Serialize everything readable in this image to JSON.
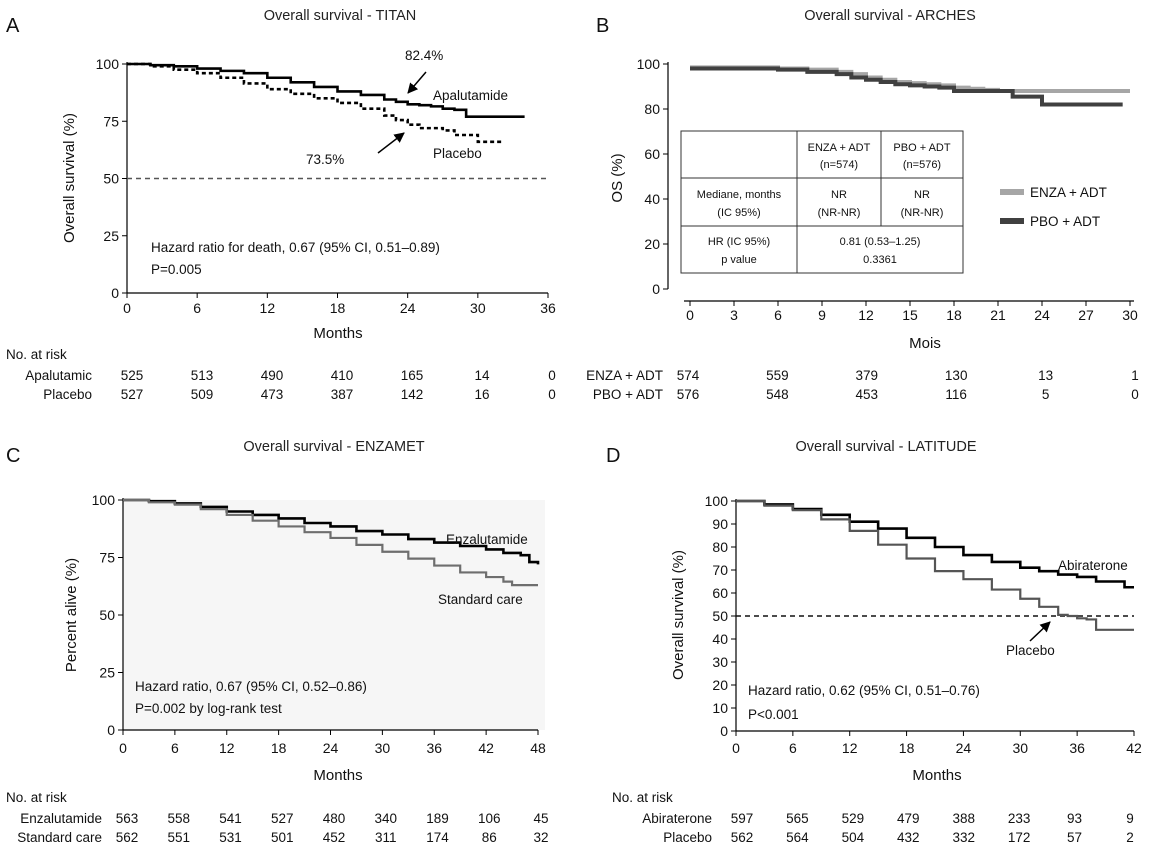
{
  "chart_data": [
    {
      "panel": "A",
      "type": "line",
      "title": "Overall survival - TITAN",
      "xlabel": "Months",
      "ylabel": "Overall survival (%)",
      "xlim": [
        0,
        36
      ],
      "ylim": [
        0,
        100
      ],
      "xticks": [
        0,
        6,
        12,
        18,
        24,
        30,
        36
      ],
      "yticks": [
        0,
        25,
        50,
        75,
        100
      ],
      "reference_line": 50,
      "series": [
        {
          "name": "Apalutamide",
          "style": "solid",
          "x": [
            0,
            2,
            4,
            6,
            8,
            10,
            12,
            14,
            16,
            18,
            20,
            22,
            23,
            24,
            25,
            26,
            27,
            28,
            29,
            30,
            32,
            34
          ],
          "y": [
            100,
            99.5,
            99,
            98,
            97,
            96,
            94,
            92,
            90,
            88,
            86.5,
            84.5,
            83.5,
            82.4,
            82,
            81.5,
            80.5,
            80,
            77,
            77,
            77,
            77
          ]
        },
        {
          "name": "Placebo",
          "style": "dashed",
          "x": [
            0,
            2,
            4,
            6,
            8,
            10,
            12,
            14,
            16,
            18,
            20,
            22,
            23,
            24,
            25,
            26,
            27,
            28,
            30,
            31,
            32
          ],
          "y": [
            100,
            99,
            97.5,
            96,
            94,
            91.5,
            89,
            87,
            85,
            83,
            80.5,
            77.5,
            75.5,
            73.5,
            72,
            72,
            71,
            69,
            66,
            66,
            66
          ]
        }
      ],
      "annotations": [
        {
          "text": "82.4%"
        },
        {
          "text": "73.5%"
        },
        {
          "text": "Apalutamide"
        },
        {
          "text": "Placebo"
        },
        {
          "text": "Hazard ratio for death, 0.67 (95% CI, 0.51–0.89)"
        },
        {
          "text": "P=0.005"
        }
      ],
      "risk_table": {
        "title": "No. at risk",
        "rows": [
          {
            "label": "Apalutamic",
            "values": [
              525,
              513,
              490,
              410,
              165,
              14,
              0
            ]
          },
          {
            "label": "Placebo",
            "values": [
              527,
              509,
              473,
              387,
              142,
              16,
              0
            ]
          }
        ]
      }
    },
    {
      "panel": "B",
      "type": "line",
      "title": "Overall survival - ARCHES",
      "xlabel": "Mois",
      "ylabel": "OS (%)",
      "xlim": [
        0,
        30
      ],
      "ylim": [
        0,
        100
      ],
      "xticks": [
        0,
        3,
        6,
        9,
        12,
        15,
        18,
        21,
        24,
        27,
        30
      ],
      "yticks": [
        0,
        20,
        40,
        60,
        80,
        100
      ],
      "series": [
        {
          "name": "ENZA + ADT",
          "color": "#a6a6a6",
          "x": [
            0,
            3,
            6,
            8,
            10,
            11,
            12,
            13,
            14,
            15,
            16,
            17,
            18,
            19,
            20,
            21,
            22,
            24,
            26,
            28,
            30
          ],
          "y": [
            98.5,
            98.5,
            98,
            97.5,
            96.5,
            95.5,
            94,
            93,
            92,
            91.5,
            91,
            90.5,
            89.5,
            89,
            88.5,
            88,
            88,
            88,
            88,
            88,
            88
          ]
        },
        {
          "name": "PBO + ADT",
          "color": "#404040",
          "x": [
            0,
            3,
            6,
            8,
            10,
            11,
            12,
            13,
            14,
            15,
            16,
            17,
            18,
            20,
            21,
            22,
            24,
            26,
            28,
            29.5
          ],
          "y": [
            98,
            98,
            97.5,
            96.5,
            95.5,
            94,
            93,
            92,
            91,
            90.5,
            90,
            89.5,
            88,
            88,
            88,
            85.5,
            82,
            82,
            82,
            82
          ]
        }
      ],
      "legend": "right",
      "table": {
        "headers": [
          "",
          "ENZA + ADT",
          "PBO + ADT"
        ],
        "header_sub": [
          "",
          "(n=574)",
          "(n=576)"
        ],
        "rows": [
          {
            "label": "Mediane, months",
            "sub": "(IC 95%)",
            "c1": "NR",
            "c1_sub": "(NR-NR)",
            "c2": "NR",
            "c2_sub": "(NR-NR)"
          },
          {
            "label": "HR (IC 95%)",
            "sub": "p value",
            "merged": "0.81 (0.53–1.25)",
            "merged_sub": "0.3361"
          }
        ]
      },
      "risk_table": {
        "rows": [
          {
            "label": "ENZA + ADT",
            "values": [
              574,
              559,
              379,
              130,
              13,
              1
            ]
          },
          {
            "label": "PBO + ADT",
            "values": [
              576,
              548,
              453,
              116,
              5,
              0
            ]
          }
        ]
      }
    },
    {
      "panel": "C",
      "type": "line",
      "title": "Overall survival - ENZAMET",
      "xlabel": "Months",
      "ylabel": "Percent alive (%)",
      "xlim": [
        0,
        48
      ],
      "ylim": [
        0,
        100
      ],
      "xticks": [
        0,
        6,
        12,
        18,
        24,
        30,
        36,
        42,
        48
      ],
      "yticks": [
        0,
        25,
        50,
        75,
        100
      ],
      "series": [
        {
          "name": "Enzalutamide",
          "color": "#000000",
          "x": [
            0,
            3,
            6,
            9,
            12,
            15,
            18,
            21,
            24,
            27,
            30,
            33,
            36,
            39,
            42,
            44,
            46,
            47,
            48
          ],
          "y": [
            100,
            99.5,
            98.5,
            97,
            95,
            93.5,
            92,
            90,
            88.5,
            86.5,
            85,
            83,
            81.5,
            80,
            78.5,
            77,
            76,
            73,
            72
          ]
        },
        {
          "name": "Standard care",
          "color": "#6e6e6e",
          "x": [
            0,
            3,
            6,
            9,
            12,
            15,
            18,
            21,
            24,
            27,
            30,
            33,
            36,
            39,
            42,
            44,
            45,
            48
          ],
          "y": [
            100,
            99,
            98,
            96,
            93.5,
            91,
            88.5,
            86,
            83.5,
            80.5,
            77.5,
            74.5,
            71.5,
            68.5,
            66.5,
            64.5,
            63,
            63
          ]
        }
      ],
      "annotations": [
        {
          "text": "Enzalutamide"
        },
        {
          "text": "Standard care"
        },
        {
          "text": "Hazard ratio, 0.67 (95% CI, 0.52–0.86)"
        },
        {
          "text": "P=0.002 by log-rank test"
        }
      ],
      "risk_table": {
        "title": "No. at risk",
        "rows": [
          {
            "label": "Enzalutamide",
            "values": [
              563,
              558,
              541,
              527,
              480,
              340,
              189,
              106,
              45
            ]
          },
          {
            "label": "Standard care",
            "values": [
              562,
              551,
              531,
              501,
              452,
              311,
              174,
              86,
              32
            ]
          }
        ]
      }
    },
    {
      "panel": "D",
      "type": "line",
      "title": "Overall survival - LATITUDE",
      "xlabel": "Months",
      "ylabel": "Overall survival (%)",
      "xlim": [
        0,
        42
      ],
      "ylim": [
        0,
        100
      ],
      "xticks": [
        0,
        6,
        12,
        18,
        24,
        30,
        36,
        42
      ],
      "yticks": [
        0,
        10,
        20,
        30,
        40,
        50,
        60,
        70,
        80,
        90,
        100
      ],
      "reference_line": 50,
      "series": [
        {
          "name": "Abiraterone",
          "color": "#000000",
          "x": [
            0,
            3,
            6,
            9,
            12,
            15,
            18,
            21,
            24,
            27,
            30,
            32,
            34,
            36,
            38,
            40,
            41,
            42
          ],
          "y": [
            100,
            98.5,
            96.5,
            94,
            91,
            88,
            84,
            80,
            76.5,
            73.5,
            71,
            69.5,
            68,
            67,
            65,
            65,
            62.5,
            62.5
          ]
        },
        {
          "name": "Placebo",
          "color": "#555555",
          "x": [
            0,
            3,
            6,
            9,
            12,
            15,
            18,
            21,
            24,
            27,
            30,
            32,
            34,
            35,
            36,
            37,
            38,
            40,
            42
          ],
          "y": [
            100,
            98,
            96,
            92,
            87,
            81,
            75,
            69.5,
            66,
            61.5,
            57.5,
            54,
            50.5,
            50,
            49,
            48.5,
            44,
            44,
            44
          ]
        }
      ],
      "annotations": [
        {
          "text": "Abiraterone"
        },
        {
          "text": "Placebo"
        },
        {
          "text": "Hazard ratio, 0.62 (95% CI, 0.51–0.76)"
        },
        {
          "text": "P<0.001"
        }
      ],
      "risk_table": {
        "title": "No. at risk",
        "rows": [
          {
            "label": "Abiraterone",
            "values": [
              597,
              565,
              529,
              479,
              388,
              233,
              93,
              9
            ]
          },
          {
            "label": "Placebo",
            "values": [
              562,
              564,
              504,
              432,
              332,
              172,
              57,
              2
            ]
          }
        ]
      }
    }
  ]
}
